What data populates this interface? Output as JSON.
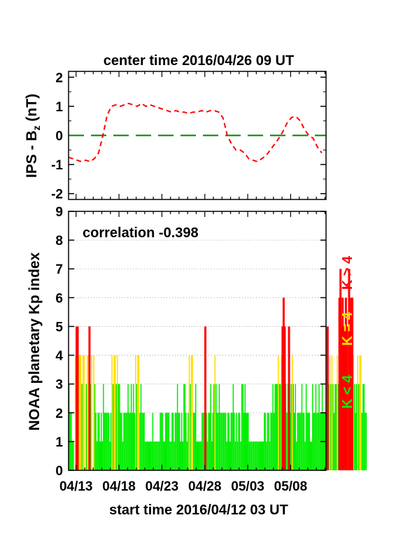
{
  "chart_data": [
    {
      "type": "line",
      "title": "center time 2016/04/26 09 UT",
      "ylabel": "IPS - B",
      "ylabel_sub": "z",
      "ylabel_unit": " (nT)",
      "ylim": [
        -2.2,
        2.2
      ],
      "yticks": [
        "2",
        "1",
        "0",
        "-1",
        "-2"
      ],
      "xlim_days": [
        0,
        30
      ],
      "zero_line_color": "#008000",
      "series": [
        {
          "color": "#ff0000",
          "style": "dashed",
          "x": [
            0.0,
            0.5,
            1.0,
            1.5,
            2.0,
            2.5,
            3.0,
            3.5,
            4.0,
            4.5,
            5.0,
            5.5,
            6.0,
            6.5,
            7.0,
            7.5,
            8.0,
            8.5,
            9.0,
            9.5,
            10.0,
            10.5,
            11.0,
            11.5,
            12.0,
            12.5,
            13.0,
            13.5,
            14.0,
            14.5,
            15.0,
            15.5,
            16.0,
            16.5,
            17.0,
            17.5,
            18.0,
            18.5,
            19.0,
            19.5,
            20.0,
            20.5,
            21.0,
            21.5,
            22.0,
            22.5,
            23.0,
            23.5,
            24.0,
            24.5,
            25.0,
            25.5,
            26.0,
            26.5,
            27.0,
            27.5,
            28.0,
            28.5,
            29.0,
            29.5
          ],
          "y": [
            -0.75,
            -0.8,
            -0.85,
            -0.9,
            -0.85,
            -0.9,
            -0.8,
            -0.6,
            0.0,
            0.7,
            1.0,
            1.05,
            1.0,
            1.05,
            1.1,
            1.05,
            1.0,
            1.1,
            1.0,
            1.05,
            1.0,
            0.95,
            0.9,
            0.85,
            0.8,
            0.85,
            0.8,
            0.8,
            0.75,
            0.8,
            0.8,
            0.85,
            0.8,
            0.85,
            0.85,
            0.8,
            0.6,
            0.0,
            -0.3,
            -0.5,
            -0.5,
            -0.6,
            -0.8,
            -0.85,
            -0.9,
            -0.8,
            -0.7,
            -0.5,
            -0.3,
            -0.1,
            0.15,
            0.45,
            0.62,
            0.65,
            0.5,
            0.2,
            0.0,
            -0.1,
            -0.4,
            -0.6
          ]
        }
      ]
    },
    {
      "type": "bar",
      "annotation": "correlation -0.398",
      "ylabel": "NOAA planetary Kp index",
      "xlabel": "start time 2016/04/12 03 UT",
      "ylim": [
        0,
        9
      ],
      "yticks": [
        "0",
        "1",
        "2",
        "3",
        "4",
        "5",
        "6",
        "7",
        "8",
        "9"
      ],
      "xticks": [
        "04/13",
        "04/18",
        "04/23",
        "04/28",
        "05/03",
        "05/08"
      ],
      "xtick_days": [
        0.875,
        5.875,
        10.875,
        15.875,
        20.875,
        25.875
      ],
      "xlim_days": [
        0,
        30
      ],
      "grid": "horizontal dotted",
      "legend": [
        {
          "label": "K < 4",
          "color": "#00ee00"
        },
        {
          "label": "K = 4",
          "color": "#ffdd00"
        },
        {
          "label": "K > 4",
          "color": "#ff0000"
        }
      ],
      "kp_3hourly": [
        3,
        2,
        2,
        1,
        1,
        0,
        4,
        5,
        5,
        4,
        4,
        4,
        3,
        4,
        4,
        0,
        3,
        4,
        4,
        5,
        3,
        4,
        0,
        4,
        3,
        2,
        1,
        2,
        2,
        1,
        2,
        1,
        3,
        2,
        2,
        2,
        2,
        2,
        1,
        2,
        4,
        3,
        4,
        4,
        3,
        4,
        3,
        3,
        2,
        2,
        1,
        2,
        2,
        2,
        2,
        3,
        2,
        2,
        3,
        2,
        3,
        2,
        4,
        3,
        4,
        4,
        2,
        3,
        2,
        2,
        2,
        1,
        1,
        1,
        1,
        1,
        1,
        1,
        2,
        1,
        1,
        1,
        1,
        1,
        1,
        2,
        2,
        2,
        1,
        1,
        2,
        2,
        2,
        2,
        1,
        1,
        2,
        2,
        1,
        2,
        2,
        3,
        2,
        2,
        1,
        2,
        1,
        3,
        3,
        2,
        1,
        2,
        4,
        3,
        4,
        4,
        2,
        2,
        3,
        1,
        1,
        1,
        1,
        1,
        2,
        2,
        2,
        5,
        2,
        1,
        2,
        2,
        3,
        1,
        2,
        3,
        4,
        3,
        2,
        2,
        3,
        2,
        2,
        2,
        2,
        2,
        2,
        1,
        2,
        2,
        1,
        2,
        2,
        3,
        2,
        1,
        2,
        1,
        2,
        2,
        1,
        3,
        3,
        2,
        3,
        2,
        2,
        2,
        1,
        1,
        1,
        1,
        1,
        1,
        1,
        1,
        1,
        1,
        1,
        1,
        1,
        1,
        2,
        2,
        1,
        2,
        2,
        1,
        2,
        2,
        3,
        2,
        3,
        3,
        3,
        4,
        3,
        3,
        4,
        5,
        6,
        5,
        3,
        2,
        3,
        5,
        2,
        3,
        4,
        3,
        2,
        3,
        1,
        2,
        2,
        2,
        2,
        3,
        2,
        2,
        1,
        3,
        2,
        2,
        2,
        1,
        1,
        3,
        2,
        2,
        3,
        2,
        2,
        3,
        2,
        2,
        3,
        2,
        2,
        2,
        2,
        5,
        3,
        4,
        3,
        4,
        3,
        2,
        3,
        3,
        4,
        3,
        6,
        7,
        5,
        6,
        5,
        5,
        6,
        5,
        4,
        7,
        5,
        6,
        6,
        4,
        3,
        2,
        3,
        4,
        3,
        4,
        4,
        2,
        3,
        3,
        2,
        2
      ]
    }
  ]
}
